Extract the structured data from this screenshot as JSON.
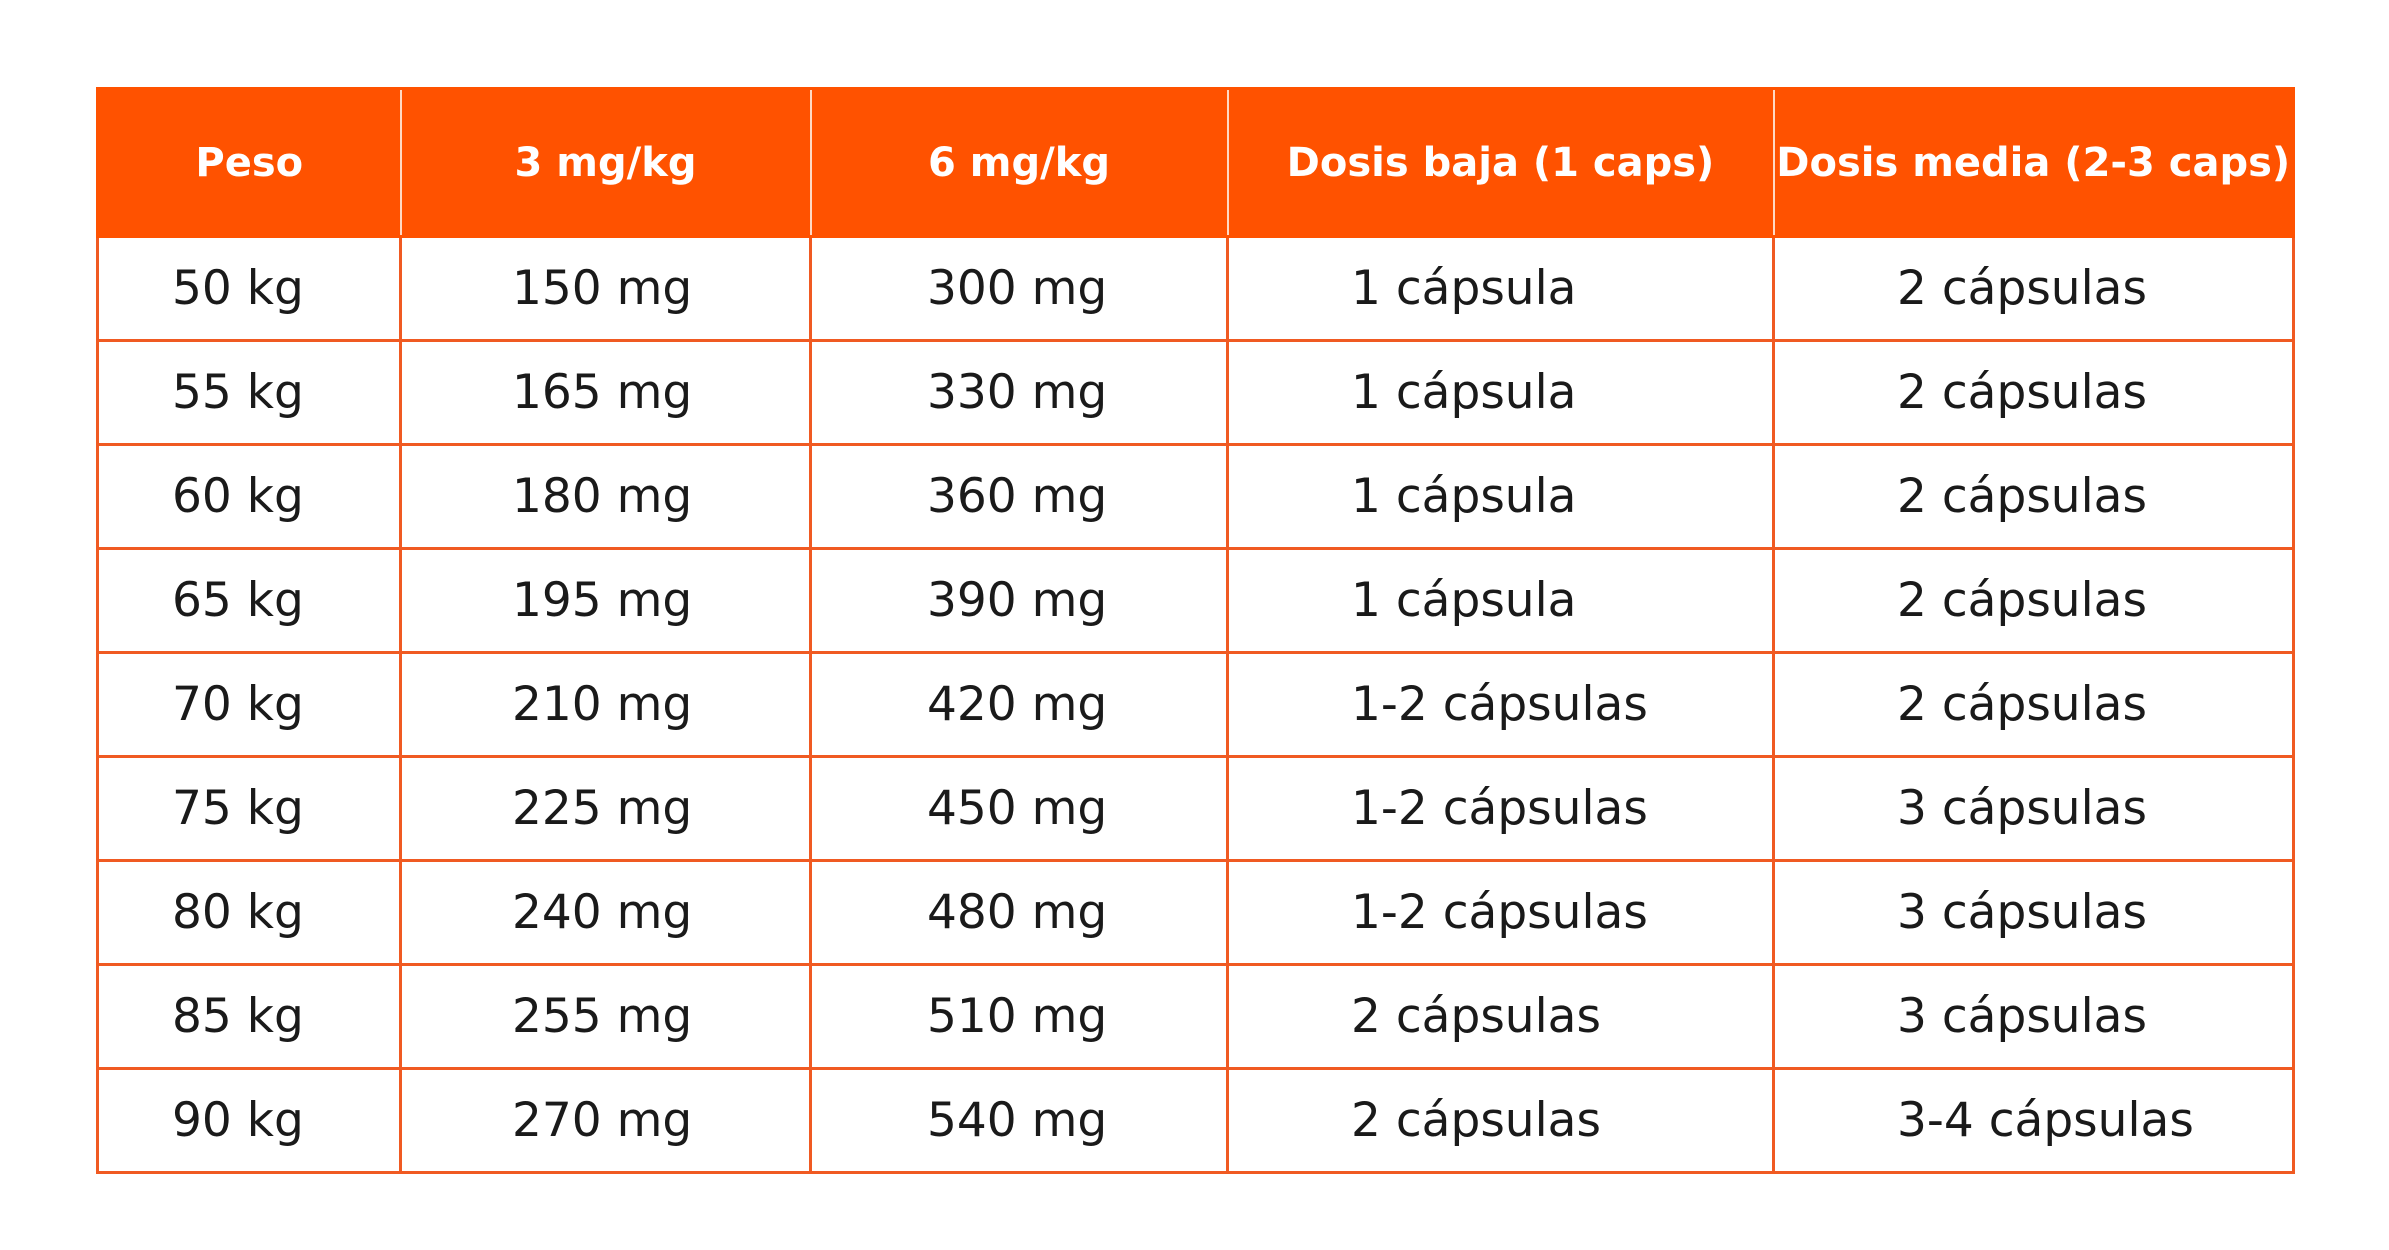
{
  "table": {
    "header": [
      "Peso",
      "3 mg/kg",
      "6 mg/kg",
      "Dosis baja (1 caps)",
      "Dosis media (2-3 caps)"
    ],
    "rows": [
      [
        "50 kg",
        "150 mg",
        "300 mg",
        "1 cápsula",
        "2 cápsulas"
      ],
      [
        "55 kg",
        "165 mg",
        "330 mg",
        "1 cápsula",
        "2 cápsulas"
      ],
      [
        "60 kg",
        "180 mg",
        "360 mg",
        "1 cápsula",
        "2 cápsulas"
      ],
      [
        "65 kg",
        "195 mg",
        "390 mg",
        "1 cápsula",
        "2 cápsulas"
      ],
      [
        "70 kg",
        "210 mg",
        "420 mg",
        "1-2 cápsulas",
        "2 cápsulas"
      ],
      [
        "75 kg",
        "225 mg",
        "450 mg",
        "1-2 cápsulas",
        "3 cápsulas"
      ],
      [
        "80 kg",
        "240 mg",
        "480 mg",
        "1-2 cápsulas",
        "3 cápsulas"
      ],
      [
        "85 kg",
        "255 mg",
        "510 mg",
        "2 cápsulas",
        "3 cápsulas"
      ],
      [
        "90 kg",
        "270 mg",
        "540 mg",
        "2 cápsulas",
        "3-4 cápsulas"
      ]
    ]
  }
}
